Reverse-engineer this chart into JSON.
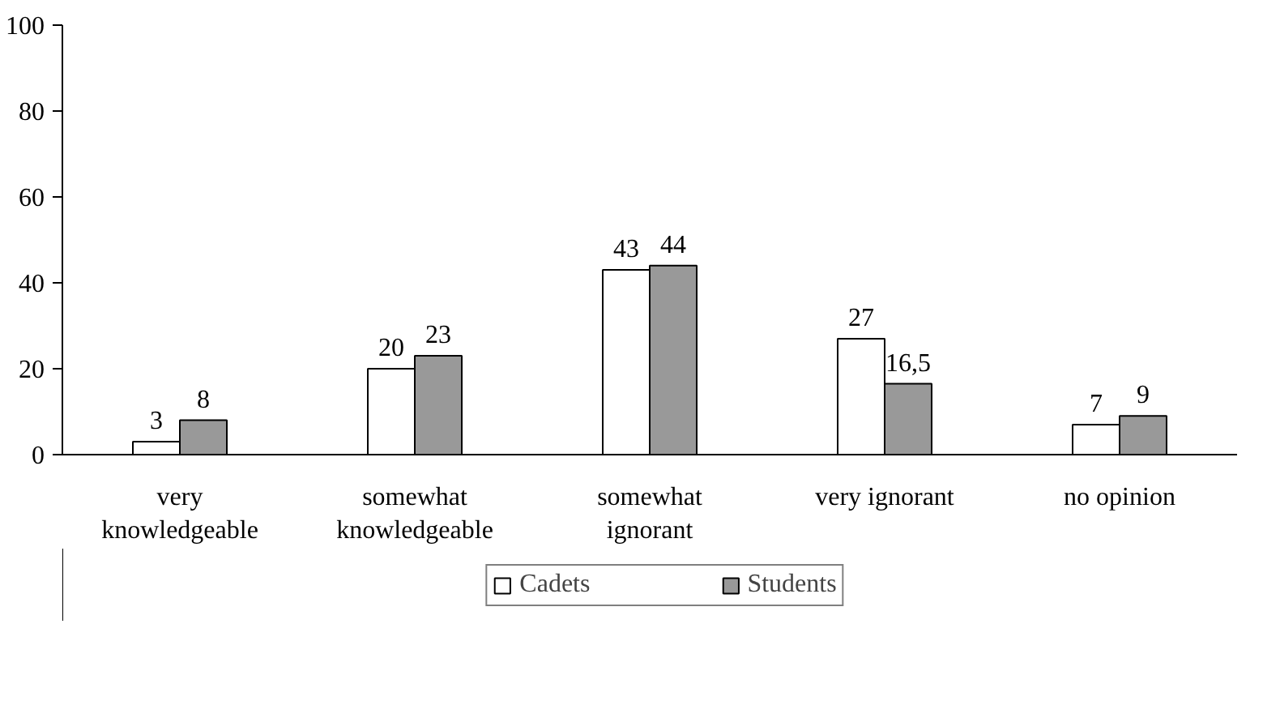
{
  "chart_data": {
    "type": "bar",
    "categories": [
      "very knowledgeable",
      "somewhat knowledgeable",
      "somewhat ignorant",
      "very ignorant",
      "no opinion"
    ],
    "series": [
      {
        "name": "Cadets",
        "color": "#ffffff",
        "values": [
          3,
          20,
          43,
          27,
          7
        ],
        "value_labels": [
          "3",
          "20",
          "43",
          "27",
          "7"
        ]
      },
      {
        "name": "Students",
        "color": "#999999",
        "values": [
          8,
          23,
          44,
          16.5,
          9
        ],
        "value_labels": [
          "8",
          "23",
          "44",
          "16,5",
          "9"
        ]
      }
    ],
    "ylim": [
      0,
      100
    ],
    "yticks": [
      0,
      20,
      40,
      60,
      80,
      100
    ],
    "grid": false,
    "legend": "bottom"
  }
}
